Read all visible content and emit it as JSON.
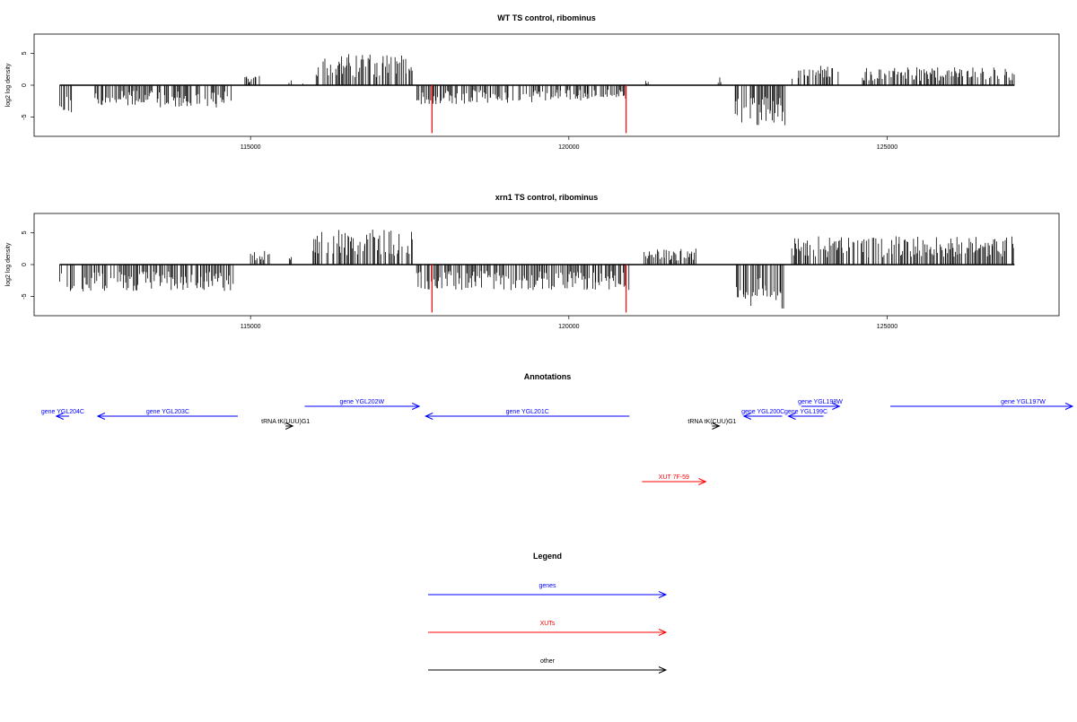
{
  "chart_data": [
    {
      "type": "bar",
      "title": "WT TS control, ribominus",
      "ylabel": "log2 log density",
      "xlabel": "",
      "xlim": [
        111600,
        127700
      ],
      "ylim": [
        -8,
        8
      ],
      "yticks": [
        -5,
        0,
        5
      ],
      "xticks": [
        115000,
        120000,
        125000
      ],
      "grid": false,
      "segments": [
        {
          "x0": 112000,
          "x1": 112200,
          "amp": 4.5,
          "sign": -1
        },
        {
          "x0": 112550,
          "x1": 114700,
          "amp": 3.5,
          "sign": -1
        },
        {
          "x0": 114900,
          "x1": 115150,
          "amp": 1.6,
          "sign": 1
        },
        {
          "x0": 115600,
          "x1": 115650,
          "amp": 1.0,
          "sign": 1
        },
        {
          "x0": 115800,
          "x1": 115850,
          "amp": -0.8,
          "sign": 1
        },
        {
          "x0": 116000,
          "x1": 117550,
          "amp": 5.0,
          "sign": 1
        },
        {
          "x0": 117600,
          "x1": 119500,
          "amp": 3.0,
          "sign": -1
        },
        {
          "x0": 119500,
          "x1": 120900,
          "amp": 2.5,
          "sign": -1
        },
        {
          "x0": 121200,
          "x1": 121250,
          "amp": 0.8,
          "sign": 1
        },
        {
          "x0": 122300,
          "x1": 122400,
          "amp": 1.4,
          "sign": 1
        },
        {
          "x0": 122600,
          "x1": 123400,
          "amp": 6.5,
          "sign": -1
        },
        {
          "x0": 123500,
          "x1": 124300,
          "amp": 3.2,
          "sign": 1
        },
        {
          "x0": 124600,
          "x1": 127000,
          "amp": 2.8,
          "sign": 1
        }
      ],
      "highlights": [
        {
          "x": 117850,
          "y": -7.5
        },
        {
          "x": 120900,
          "y": -7.5
        }
      ]
    },
    {
      "type": "bar",
      "title": "xrn1 TS control, ribominus",
      "ylabel": "log2 log density",
      "xlabel": "",
      "xlim": [
        111600,
        127700
      ],
      "ylim": [
        -8,
        8
      ],
      "yticks": [
        -5,
        0,
        5
      ],
      "xticks": [
        115000,
        120000,
        125000
      ],
      "grid": false,
      "segments": [
        {
          "x0": 112000,
          "x1": 112250,
          "amp": 4.5,
          "sign": -1
        },
        {
          "x0": 112350,
          "x1": 114750,
          "amp": 4.2,
          "sign": -1
        },
        {
          "x0": 114950,
          "x1": 115300,
          "amp": 2.2,
          "sign": 1
        },
        {
          "x0": 115600,
          "x1": 115650,
          "amp": 1.5,
          "sign": 1
        },
        {
          "x0": 115950,
          "x1": 117550,
          "amp": 5.5,
          "sign": 1
        },
        {
          "x0": 117600,
          "x1": 120950,
          "amp": 4.0,
          "sign": -1
        },
        {
          "x0": 121150,
          "x1": 122000,
          "amp": 2.5,
          "sign": 1
        },
        {
          "x0": 122600,
          "x1": 123400,
          "amp": 7.0,
          "sign": -1
        },
        {
          "x0": 123500,
          "x1": 127000,
          "amp": 4.5,
          "sign": 1
        }
      ],
      "highlights": [
        {
          "x": 117850,
          "y": -7.5
        },
        {
          "x": 120900,
          "y": -7.5
        }
      ]
    }
  ],
  "annotations": {
    "title": "Annotations",
    "features": [
      {
        "label": "gene YGL204C",
        "start": 112150,
        "end": 111950,
        "row": 1,
        "kind": "gene"
      },
      {
        "label": "gene YGL203C",
        "start": 114800,
        "end": 112600,
        "row": 1,
        "kind": "gene"
      },
      {
        "label": "tRNA tK(UUU)G1",
        "start": 115550,
        "end": 115650,
        "row": 2,
        "kind": "other"
      },
      {
        "label": "gene YGL202W",
        "start": 115850,
        "end": 117650,
        "row": 0,
        "kind": "gene"
      },
      {
        "label": "gene YGL201C",
        "start": 120950,
        "end": 117750,
        "row": 1,
        "kind": "gene"
      },
      {
        "label": "tRNA tK(CUU)G1",
        "start": 122250,
        "end": 122350,
        "row": 2,
        "kind": "other"
      },
      {
        "label": "gene YGL200C",
        "start": 123350,
        "end": 122750,
        "row": 1,
        "kind": "gene"
      },
      {
        "label": "gene YGL199C",
        "start": 124000,
        "end": 123450,
        "row": 1,
        "kind": "gene"
      },
      {
        "label": "gene YGL198W",
        "start": 123650,
        "end": 124250,
        "row": 0,
        "kind": "gene"
      },
      {
        "label": "gene YGL197W",
        "start": 125050,
        "end": 128400,
        "row": 0,
        "kind": "gene"
      },
      {
        "label": "XUT 7F-59",
        "start": 121150,
        "end": 122150,
        "row": 4,
        "kind": "xut"
      }
    ]
  },
  "legend": {
    "title": "Legend",
    "items": [
      {
        "label": "genes",
        "kind": "gene"
      },
      {
        "label": "XUTs",
        "kind": "xut"
      },
      {
        "label": "other",
        "kind": "other"
      }
    ]
  },
  "colors": {
    "gene": "#0000ff",
    "xut": "#ff0000",
    "other": "#000000",
    "bars": "#000000",
    "highlight": "#ff0000",
    "axis": "#000000"
  }
}
